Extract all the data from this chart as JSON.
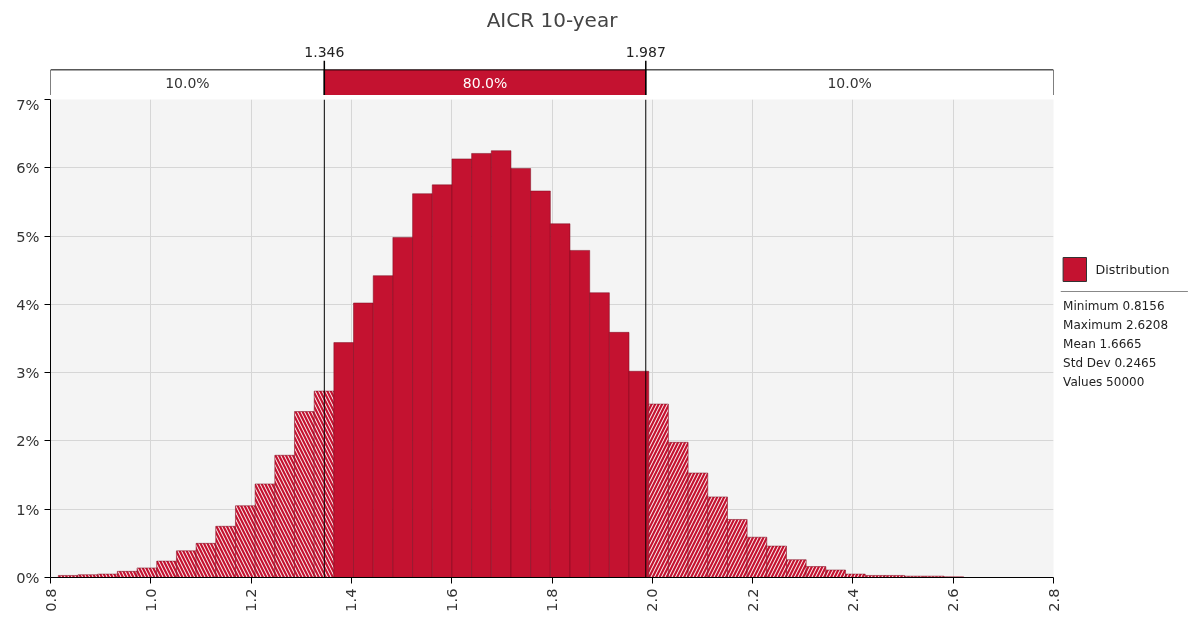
{
  "chart_data": {
    "type": "histogram",
    "title": "AICR 10-year",
    "bins": [
      0.8156,
      0.8548,
      0.8941,
      0.9333,
      0.9726,
      1.0118,
      1.0511,
      1.0903,
      1.1295,
      1.1688,
      1.208,
      1.2473,
      1.2865,
      1.3258,
      1.365,
      1.4042,
      1.4435,
      1.4827,
      1.522,
      1.5612,
      1.6005,
      1.6397,
      1.6789,
      1.7182,
      1.7574,
      1.7967,
      1.8359,
      1.8752,
      1.9144,
      1.9536,
      1.9929,
      2.0321,
      2.0714,
      2.1106,
      2.1499,
      2.1891,
      2.2283,
      2.2676,
      2.3068,
      2.3461,
      2.3853,
      2.4246,
      2.4638,
      2.503,
      2.5423,
      2.5815,
      2.6208
    ],
    "series": [
      {
        "name": "Distribution",
        "color": "#c41230",
        "values": [
          0.03,
          0.04,
          0.05,
          0.09,
          0.14,
          0.24,
          0.39,
          0.5,
          0.75,
          1.05,
          1.37,
          1.79,
          2.43,
          2.73,
          3.44,
          4.02,
          4.42,
          4.98,
          5.62,
          5.75,
          6.13,
          6.21,
          6.25,
          5.99,
          5.66,
          5.18,
          4.79,
          4.17,
          3.59,
          3.02,
          2.54,
          1.98,
          1.53,
          1.18,
          0.85,
          0.59,
          0.46,
          0.26,
          0.16,
          0.11,
          0.05,
          0.03,
          0.03,
          0.02,
          0.02,
          0.01
        ]
      }
    ],
    "xlim": [
      0.8,
      2.8
    ],
    "xticks": [
      0.8,
      {
        "value": 1.0,
        "label": "1.0"
      },
      1.2,
      1.4,
      1.6,
      1.8,
      {
        "value": 2.0,
        "label": "2.0"
      },
      2.2,
      2.4,
      2.6,
      2.8
    ],
    "ylim": [
      0,
      7
    ],
    "yticks": [
      {
        "value": 0,
        "label": "0%"
      },
      {
        "value": 1,
        "label": "1%"
      },
      {
        "value": 2,
        "label": "2%"
      },
      {
        "value": 3,
        "label": "3%"
      },
      {
        "value": 4,
        "label": "4%"
      },
      {
        "value": 5,
        "label": "5%"
      },
      {
        "value": 6,
        "label": "6%"
      },
      {
        "value": 7,
        "label": "7%"
      }
    ],
    "ref_lines": [
      {
        "axis": "x",
        "value": 1.346,
        "label": "1.346"
      },
      {
        "axis": "x",
        "value": 1.987,
        "label": "1.987"
      }
    ],
    "annotations": [
      "10.0%",
      "80.0%",
      "10.0%",
      "Minimum 0.8156",
      "Maximum 2.6208",
      "Mean 1.6665",
      "Std Dev 0.2465",
      "Values 50000"
    ],
    "grid": true,
    "legend": "right"
  }
}
